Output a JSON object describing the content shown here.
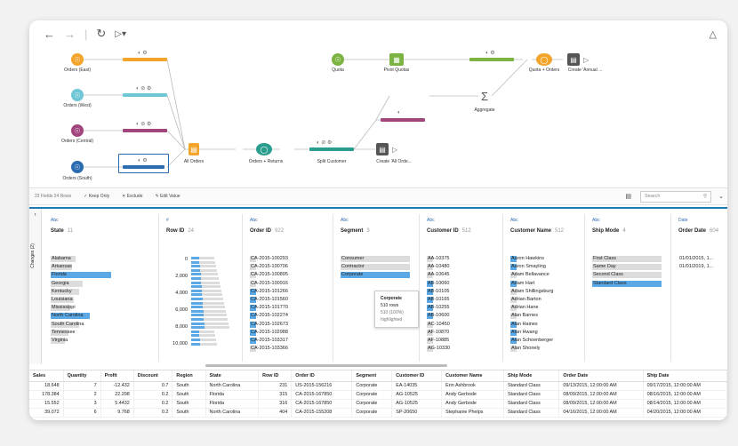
{
  "nav": {
    "back_icon": "back-arrow-icon",
    "forward_icon": "forward-arrow-icon",
    "refresh_icon": "refresh-icon",
    "run_icon": "play-icon",
    "alert_icon": "triangle-alert-icon"
  },
  "flow": {
    "inputs": [
      {
        "label": "Orders (East)",
        "color": "#f2a42b"
      },
      {
        "label": "Orders (West)",
        "color": "#6fc6d5"
      },
      {
        "label": "Orders (Central)",
        "color": "#a1467d"
      },
      {
        "label": "Orders (South)",
        "color": "#2b6cb0"
      }
    ],
    "union_label": "All Orders",
    "join_label": "Orders + Returns",
    "split_label": "Split Customer",
    "output1_label": "Create 'All Orde...",
    "quota_label": "Quota",
    "pivot_label": "Pivot Quotas",
    "aggregate_label": "Aggregate",
    "join2_label": "Quota + Orders",
    "output2_label": "Create 'Annual ..."
  },
  "profile_bar": {
    "fields": "22 Fields  24 Rows",
    "keep_only": "Keep Only",
    "exclude": "Exclude",
    "edit_value": "Edit Value",
    "search_placeholder": "Search"
  },
  "changes_label": "Changes (2)",
  "cards": {
    "state": {
      "type": "Abc",
      "name": "State",
      "count": "11",
      "values": [
        "Alabama",
        "Arkansas",
        "Florida",
        "Georgia",
        "Kentucky",
        "Louisiana",
        "Mississippi",
        "North Carolina",
        "South Carolina",
        "Tennessee",
        "Virginia"
      ],
      "bars": [
        0.35,
        0.3,
        0.85,
        0.45,
        0.4,
        0.32,
        0.28,
        0.55,
        0.4,
        0.25,
        0.2
      ],
      "highlight": [
        2,
        7
      ]
    },
    "rowid": {
      "type": "#",
      "name": "Row ID",
      "count": "24",
      "values": [
        "0",
        "2,000",
        "4,000",
        "6,000",
        "8,000",
        "10,000"
      ]
    },
    "orderid": {
      "type": "Abc",
      "name": "Order ID",
      "count": "922",
      "values": [
        "CA-2015-100293",
        "CA-2015-100706",
        "CA-2015-100895",
        "CA-2015-100916",
        "CA-2015-101266",
        "CA-2015-101560",
        "CA-2015-101770",
        "CA-2015-102274",
        "CA-2015-102673",
        "CA-2015-102988",
        "CA-2015-103317",
        "CA-2015-103366"
      ]
    },
    "segment": {
      "type": "Abc",
      "name": "Segment",
      "count": "3",
      "values": [
        "Consumer",
        "Contractor",
        "Corporate"
      ]
    },
    "customerid": {
      "type": "Abc",
      "name": "Customer ID",
      "count": "512",
      "values": [
        "AA-10375",
        "AA-10480",
        "AA-10645",
        "AB-10060",
        "AB-10105",
        "AB-10165",
        "AB-10255",
        "AB-10600",
        "AC-10450",
        "AF-10870",
        "AF-10885",
        "AG-10330"
      ]
    },
    "customername": {
      "type": "Abc",
      "name": "Customer Name",
      "count": "512",
      "values": [
        "Aaron Hawkins",
        "Aaron Smayling",
        "Adam Bellavance",
        "Adam Hart",
        "Adam Shillingsburg",
        "Adrian Barton",
        "Adrian Hane",
        "Alan Barnes",
        "Alan Haines",
        "Alan Hwang",
        "Alan Schoenberger",
        "Alan Shonely"
      ]
    },
    "shipmode": {
      "type": "Abc",
      "name": "Ship Mode",
      "count": "4",
      "values": [
        "First Class",
        "Same Day",
        "Second Class",
        "Standard Class"
      ]
    },
    "orderdate": {
      "type": "Date",
      "name": "Order Date",
      "count": "604",
      "values": [
        "01/01/2015, 1...",
        "01/01/2019, 1..."
      ]
    }
  },
  "tooltip": {
    "title": "Corporate",
    "rows": "510 rows",
    "highlighted": "510 (100%) highlighted"
  },
  "grid": {
    "headers": [
      "Sales",
      "Quantity",
      "Profit",
      "Discount",
      "Region",
      "State",
      "Row ID",
      "Order ID",
      "Segment",
      "Customer ID",
      "Customer Name",
      "Ship Mode",
      "Order Date",
      "Ship Date"
    ],
    "rows": [
      [
        "18.648",
        "7",
        "-12.432",
        "0.7",
        "South",
        "North Carolina",
        "231",
        "US-2015-156216",
        "Corporate",
        "EA-14035",
        "Erin Ashbrook",
        "Standard Class",
        "09/13/2015, 12:00:00 AM",
        "09/17/2015, 12:00:00 AM"
      ],
      [
        "178.384",
        "2",
        "22.298",
        "0.2",
        "South",
        "Florida",
        "315",
        "CA-2015-167850",
        "Corporate",
        "AG-10525",
        "Andy Gerbode",
        "Standard Class",
        "08/09/2015, 12:00:00 AM",
        "08/16/2015, 12:00:00 AM"
      ],
      [
        "15.552",
        "3",
        "5.4432",
        "0.2",
        "South",
        "Florida",
        "316",
        "CA-2015-167850",
        "Corporate",
        "AG-10525",
        "Andy Gerbode",
        "Standard Class",
        "08/09/2015, 12:00:00 AM",
        "08/14/2015, 12:00:00 AM"
      ],
      [
        "39.072",
        "6",
        "9.768",
        "0.2",
        "South",
        "North Carolina",
        "404",
        "CA-2015-155208",
        "Corporate",
        "SP-20650",
        "Stephanie Phelps",
        "Standard Class",
        "04/16/2015, 12:00:00 AM",
        "04/20/2015, 12:00:00 AM"
      ]
    ]
  }
}
